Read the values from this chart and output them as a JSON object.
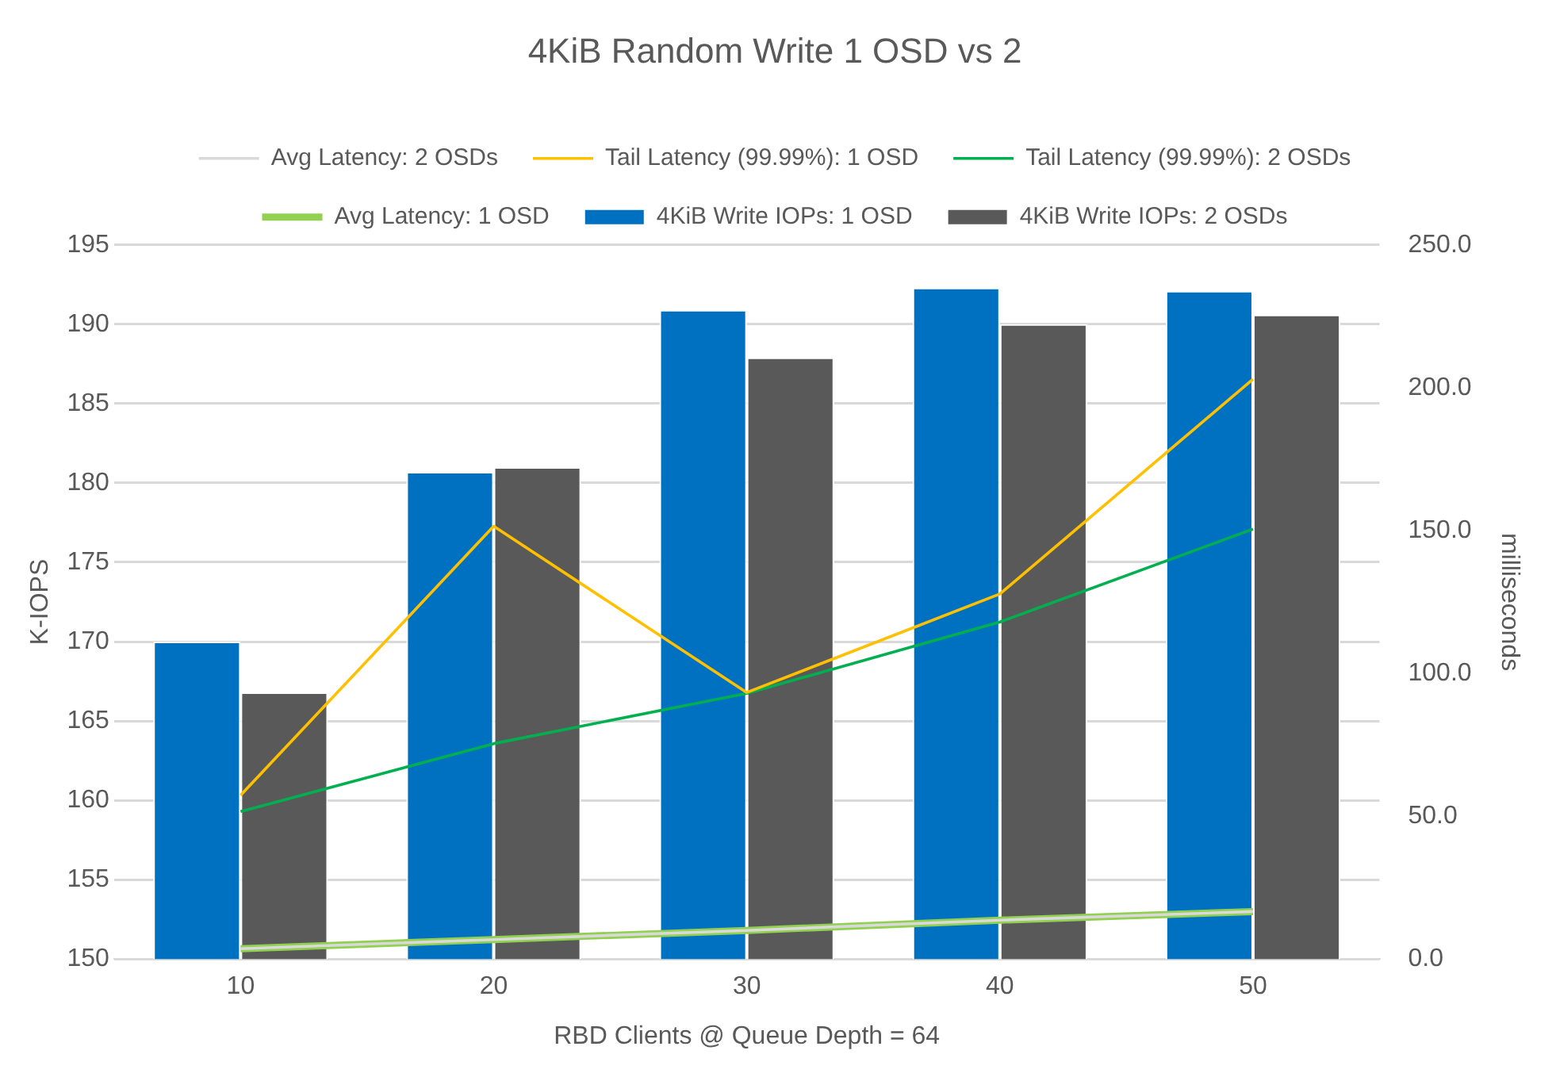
{
  "chart_data": {
    "type": "bar",
    "title": "4KiB Random Write 1 OSD vs 2",
    "xlabel": "RBD Clients @ Queue Depth = 64",
    "ylabel": "K-IOPS",
    "y2label": "milliseconds",
    "categories": [
      "10",
      "20",
      "30",
      "40",
      "50"
    ],
    "series": [
      {
        "name": "4KiB Write IOPs: 1 OSD",
        "color": "#0070c0",
        "values": [
          170,
          180.7,
          190.9,
          192.3,
          192.1
        ]
      },
      {
        "name": "4KiB Write IOPs: 2 OSDs",
        "color": "#595959",
        "values": [
          166.8,
          181,
          187.9,
          190,
          190.6
        ]
      },
      {
        "name": "Avg Latency: 1 OSD",
        "type": "line",
        "axis": "y2",
        "color": "#92d050",
        "values": [
          3.6,
          6.8,
          10,
          13.6,
          16.6
        ]
      },
      {
        "name": "Avg Latency: 2 OSDs",
        "type": "line",
        "axis": "y2",
        "color": "#d9d9d9",
        "values": [
          3.6,
          6.8,
          10,
          13.6,
          16.6
        ]
      },
      {
        "name": "Tail Latency (99.99%): 1 OSD",
        "type": "line",
        "axis": "y2",
        "color": "#ffc000",
        "values": [
          57.3,
          151.5,
          93.3,
          127.8,
          203
        ]
      },
      {
        "name": "Tail Latency (99.99%): 2 OSDs",
        "type": "line",
        "axis": "y2",
        "color": "#00b050",
        "values": [
          51.6,
          75.4,
          93,
          118,
          150.5
        ]
      }
    ],
    "ylim": [
      150,
      195
    ],
    "yticks": [
      150,
      155,
      160,
      165,
      170,
      175,
      180,
      185,
      190,
      195
    ],
    "y2lim": [
      0,
      250
    ],
    "y2ticks": [
      {
        "value": 0,
        "label": "0.0"
      },
      {
        "value": 50,
        "label": "50.0"
      },
      {
        "value": 100,
        "label": "100.0"
      },
      {
        "value": 150,
        "label": "150.0"
      },
      {
        "value": 200,
        "label": "200.0"
      },
      {
        "value": 250,
        "label": "250.0"
      }
    ],
    "grid": "y",
    "legend": "top",
    "marker": "none",
    "line_style": "solid"
  }
}
